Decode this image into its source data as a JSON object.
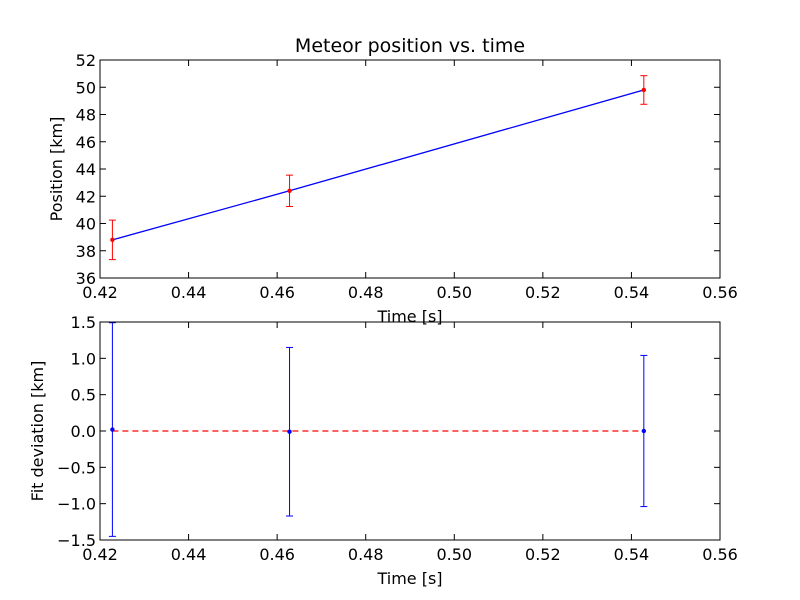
{
  "chart_data": [
    {
      "type": "line",
      "title": "Meteor position vs. time",
      "xlabel": "Time [s]",
      "ylabel": "Position [km]",
      "xlim": [
        0.42,
        0.56
      ],
      "ylim": [
        36,
        52
      ],
      "xticks": [
        0.42,
        0.44,
        0.46,
        0.48,
        0.5,
        0.52,
        0.54,
        0.56
      ],
      "xtick_labels": [
        "0.42",
        "0.44",
        "0.46",
        "0.48",
        "0.50",
        "0.52",
        "0.54",
        "0.56"
      ],
      "yticks": [
        36,
        38,
        40,
        42,
        44,
        46,
        48,
        50,
        52
      ],
      "ytick_labels": [
        "36",
        "38",
        "40",
        "42",
        "44",
        "46",
        "48",
        "50",
        "52"
      ],
      "grid": false,
      "series": [
        {
          "kind": "errorbar",
          "color": "#ff0000",
          "x": [
            0.4228,
            0.4628,
            0.5428
          ],
          "y": [
            38.8,
            42.4,
            49.8
          ],
          "yerr": [
            1.45,
            1.15,
            1.05
          ]
        },
        {
          "kind": "fit-line",
          "color": "#0000ff",
          "x": [
            0.4228,
            0.4628,
            0.5428
          ],
          "y": [
            38.8,
            42.4,
            49.8
          ]
        }
      ]
    },
    {
      "type": "scatter",
      "title": "",
      "xlabel": "Time [s]",
      "ylabel": "Fit deviation [km]",
      "xlim": [
        0.42,
        0.56
      ],
      "ylim": [
        -1.5,
        1.5
      ],
      "xticks": [
        0.42,
        0.44,
        0.46,
        0.48,
        0.5,
        0.52,
        0.54,
        0.56
      ],
      "xtick_labels": [
        "0.42",
        "0.44",
        "0.46",
        "0.48",
        "0.50",
        "0.52",
        "0.54",
        "0.56"
      ],
      "yticks": [
        -1.5,
        -1.0,
        -0.5,
        0.0,
        0.5,
        1.0,
        1.5
      ],
      "ytick_labels": [
        "−1.5",
        "−1.0",
        "−0.5",
        "0.0",
        "0.5",
        "1.0",
        "1.5"
      ],
      "grid": false,
      "series": [
        {
          "kind": "errorbar",
          "color": "#0000ff",
          "x": [
            0.4228,
            0.4628,
            0.5428
          ],
          "y": [
            0.02,
            -0.01,
            0.0
          ],
          "yerr": [
            1.47,
            1.16,
            1.04
          ]
        },
        {
          "kind": "zero-line",
          "color": "#ff0000",
          "style": "dashed",
          "x": [
            0.4228,
            0.5428
          ],
          "y": [
            0.0,
            0.0
          ]
        }
      ]
    }
  ]
}
